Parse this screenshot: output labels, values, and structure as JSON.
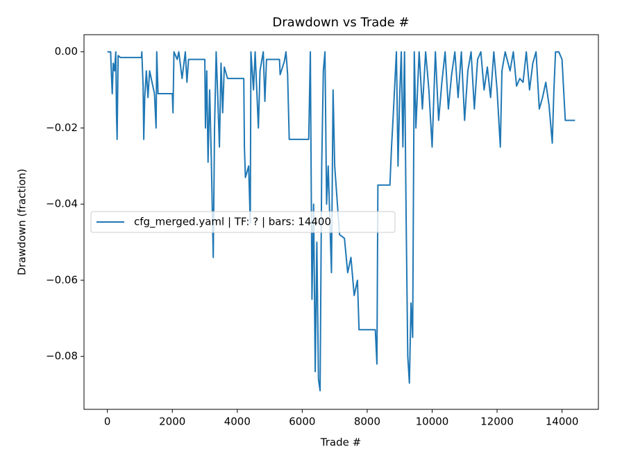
{
  "chart_data": {
    "type": "line",
    "title": "Drawdown vs Trade #",
    "xlabel": "Trade #",
    "ylabel": "Drawdown (fraction)",
    "xlim": [
      -720,
      15120
    ],
    "ylim": [
      -0.0939,
      0.0045
    ],
    "xticks": [
      0,
      2000,
      4000,
      6000,
      8000,
      10000,
      12000,
      14000
    ],
    "yticks": [
      {
        "value": 0,
        "label": "0.00"
      },
      {
        "value": -0.02,
        "label": "−0.02"
      },
      {
        "value": -0.04,
        "label": "−0.04"
      },
      {
        "value": -0.06,
        "label": "−0.06"
      },
      {
        "value": -0.08,
        "label": "−0.08"
      }
    ],
    "legend": "center left",
    "x": [
      0,
      100,
      120,
      150,
      180,
      220,
      260,
      280,
      300,
      330,
      400,
      1050,
      1060,
      1100,
      1120,
      1150,
      1200,
      1250,
      1300,
      1450,
      1500,
      1520,
      1560,
      2000,
      2020,
      2050,
      2150,
      2200,
      2300,
      2400,
      2450,
      2500,
      3000,
      3020,
      3060,
      3100,
      3150,
      3200,
      3260,
      3300,
      3350,
      3400,
      3450,
      3500,
      3550,
      3600,
      3700,
      4200,
      4220,
      4250,
      4350,
      4400,
      4420,
      4500,
      4550,
      4650,
      4700,
      4800,
      4850,
      4900,
      5300,
      5320,
      5450,
      5500,
      5550,
      5600,
      6200,
      6250,
      6300,
      6350,
      6400,
      6450,
      6500,
      6550,
      6600,
      6650,
      6700,
      6750,
      6800,
      6900,
      6950,
      7000,
      7100,
      7150,
      7300,
      7400,
      7500,
      7600,
      7700,
      7750,
      8250,
      8300,
      8330,
      8700,
      8750,
      8800,
      8900,
      8950,
      9000,
      9050,
      9100,
      9150,
      9200,
      9250,
      9300,
      9350,
      9400,
      9450,
      9500,
      9600,
      9700,
      9800,
      9900,
      10000,
      10100,
      10200,
      10300,
      10400,
      10500,
      10600,
      10700,
      10800,
      10900,
      11000,
      11100,
      11200,
      11300,
      11400,
      11500,
      11600,
      11700,
      11800,
      11900,
      12000,
      12100,
      12150,
      12250,
      12400,
      12500,
      12600,
      12700,
      12800,
      12900,
      13000,
      13100,
      13200,
      13300,
      13400,
      13500,
      13600,
      13700,
      13750,
      13800,
      13900,
      14000,
      14100,
      14400
    ],
    "series": [
      {
        "name": "cfg_merged.yaml | TF: ? | bars: 14400",
        "color": "#1f77b4",
        "values": [
          0,
          0,
          -0.005,
          -0.011,
          -0.003,
          -0.005,
          0,
          -0.016,
          -0.023,
          -0.001,
          -0.0015,
          -0.0015,
          0,
          -0.009,
          -0.023,
          -0.012,
          -0.005,
          -0.012,
          -0.005,
          -0.011,
          -0.02,
          0,
          -0.011,
          -0.011,
          -0.016,
          0,
          -0.002,
          0,
          -0.007,
          0,
          -0.008,
          -0.002,
          -0.002,
          -0.02,
          -0.005,
          -0.029,
          -0.01,
          -0.028,
          -0.054,
          -0.02,
          0,
          -0.012,
          -0.025,
          -0.003,
          -0.016,
          -0.004,
          -0.007,
          -0.007,
          -0.025,
          -0.033,
          -0.03,
          -0.045,
          0,
          -0.01,
          0,
          -0.02,
          -0.005,
          0,
          -0.013,
          -0.002,
          -0.002,
          -0.006,
          -0.0025,
          0,
          -0.006,
          -0.023,
          -0.023,
          0,
          -0.065,
          -0.04,
          -0.084,
          -0.05,
          -0.086,
          -0.089,
          -0.03,
          -0.005,
          0,
          -0.04,
          -0.03,
          -0.058,
          -0.01,
          -0.03,
          -0.042,
          -0.048,
          -0.049,
          -0.058,
          -0.054,
          -0.064,
          -0.06,
          -0.073,
          -0.073,
          -0.082,
          -0.035,
          -0.035,
          -0.025,
          -0.017,
          0,
          -0.03,
          -0.012,
          0,
          -0.025,
          0,
          -0.044,
          -0.08,
          -0.087,
          -0.066,
          -0.075,
          0,
          -0.02,
          0,
          -0.015,
          0,
          -0.01,
          -0.025,
          0,
          -0.018,
          -0.008,
          0,
          -0.015,
          -0.006,
          0,
          -0.012,
          0,
          -0.018,
          -0.005,
          0,
          -0.015,
          -0.002,
          0,
          -0.01,
          -0.004,
          -0.012,
          0,
          -0.01,
          -0.025,
          -0.005,
          0,
          -0.005,
          0,
          -0.009,
          -0.007,
          -0.008,
          0,
          -0.01,
          -0.003,
          0,
          -0.015,
          -0.012,
          -0.008,
          -0.014,
          -0.024,
          -0.01,
          0,
          0,
          -0.002,
          -0.018,
          -0.018
        ]
      }
    ]
  }
}
